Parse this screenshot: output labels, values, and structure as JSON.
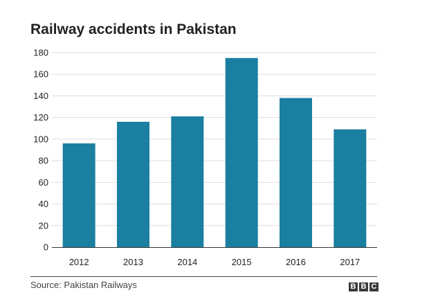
{
  "header": {
    "title": "Railway accidents in Pakistan"
  },
  "footer": {
    "source": "Source: Pakistan Railways",
    "logo": [
      "B",
      "B",
      "C"
    ]
  },
  "colors": {
    "bar": "#1a7fa0",
    "text": "#222222",
    "gridline": "#dddddd",
    "axis": "#333333"
  },
  "chart_data": {
    "type": "bar",
    "title": "Railway accidents in Pakistan",
    "xlabel": "",
    "ylabel": "",
    "categories": [
      "2012",
      "2013",
      "2014",
      "2015",
      "2016",
      "2017"
    ],
    "values": [
      96,
      116,
      121,
      175,
      138,
      109
    ],
    "ylim": [
      0,
      180
    ],
    "yticks": [
      0,
      20,
      40,
      60,
      80,
      100,
      120,
      140,
      160,
      180
    ],
    "grid": true,
    "legend": "none"
  }
}
